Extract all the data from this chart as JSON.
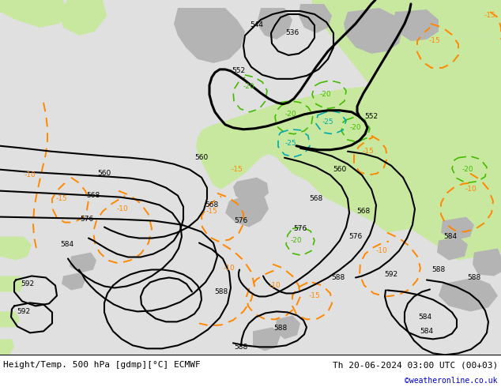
{
  "title_left": "Height/Temp. 500 hPa [gdmp][°C] ECMWF",
  "title_right": "Th 20-06-2024 03:00 UTC (00+03)",
  "credit": "©weatheronline.co.uk",
  "bg_ocean": "#e8e8e8",
  "bg_land_green": "#c8e8a0",
  "bg_land_gray": "#b4b4b4",
  "height_color": "#000000",
  "temp_orange_color": "#ff8800",
  "temp_green_color": "#44bb00",
  "temp_cyan_color": "#00bbbb",
  "title_color": "#000000",
  "credit_color": "#0000cc",
  "font_size_title": 8,
  "font_size_label": 6.5
}
